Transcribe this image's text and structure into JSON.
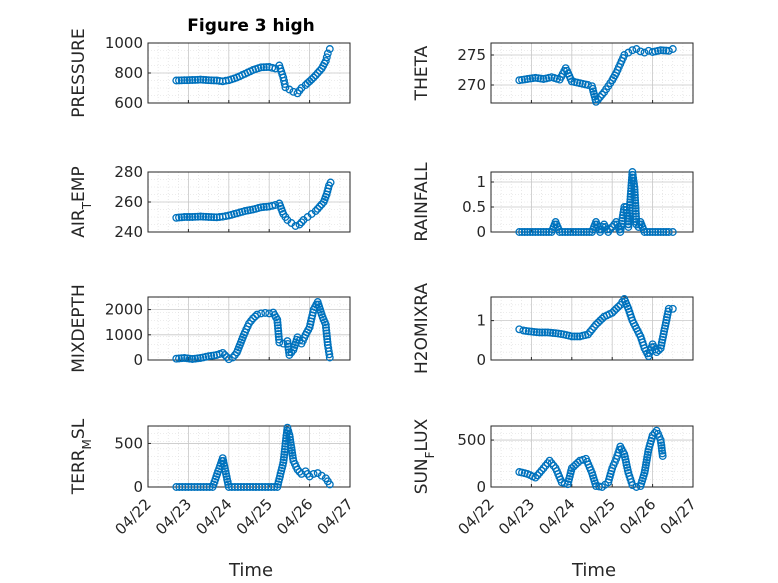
{
  "figure": {
    "title": "Figure 3 high",
    "xlabel": "Time",
    "marker_color": "#0072BD",
    "marker": "open-circle",
    "grid": true,
    "minor_grid": true
  },
  "chart_data": [
    {
      "type": "scatter",
      "ylabel": "PRESSURE",
      "ylim": [
        600,
        1000
      ],
      "yticks": [
        "600",
        "800",
        "1000"
      ],
      "yticks_values": [
        600,
        800,
        1000
      ],
      "xticks": [
        "04/22",
        "04/23",
        "04/24",
        "04/25",
        "04/26",
        "04/27"
      ],
      "xlim": [
        0,
        5
      ],
      "points": [
        [
          0.7,
          750
        ],
        [
          0.9,
          752
        ],
        [
          1.1,
          753
        ],
        [
          1.3,
          756
        ],
        [
          1.5,
          752
        ],
        [
          1.7,
          750
        ],
        [
          1.85,
          745
        ],
        [
          2.0,
          752
        ],
        [
          2.2,
          770
        ],
        [
          2.4,
          795
        ],
        [
          2.6,
          820
        ],
        [
          2.8,
          838
        ],
        [
          3.0,
          840
        ],
        [
          3.15,
          830
        ],
        [
          3.25,
          850
        ],
        [
          3.35,
          770
        ],
        [
          3.4,
          705
        ],
        [
          3.5,
          690
        ],
        [
          3.6,
          675
        ],
        [
          3.7,
          665
        ],
        [
          3.8,
          700
        ],
        [
          3.9,
          720
        ],
        [
          4.0,
          745
        ],
        [
          4.1,
          770
        ],
        [
          4.2,
          800
        ],
        [
          4.3,
          830
        ],
        [
          4.4,
          880
        ],
        [
          4.45,
          930
        ],
        [
          4.5,
          960
        ]
      ]
    },
    {
      "type": "scatter",
      "ylabel": "THETA",
      "ylim": [
        267,
        277
      ],
      "yticks": [
        "270",
        "275"
      ],
      "yticks_values": [
        270,
        275
      ],
      "xticks": [
        "04/22",
        "04/23",
        "04/24",
        "04/25",
        "04/26",
        "04/27"
      ],
      "xlim": [
        0,
        5
      ],
      "points": [
        [
          0.7,
          270.8
        ],
        [
          0.9,
          271.0
        ],
        [
          1.1,
          271.2
        ],
        [
          1.3,
          271.0
        ],
        [
          1.5,
          271.3
        ],
        [
          1.7,
          270.9
        ],
        [
          1.85,
          272.8
        ],
        [
          2.0,
          270.6
        ],
        [
          2.2,
          270.3
        ],
        [
          2.4,
          270.0
        ],
        [
          2.5,
          269.8
        ],
        [
          2.6,
          267.2
        ],
        [
          2.7,
          268.0
        ],
        [
          2.8,
          268.8
        ],
        [
          2.9,
          269.8
        ],
        [
          3.0,
          270.8
        ],
        [
          3.1,
          272.0
        ],
        [
          3.2,
          273.5
        ],
        [
          3.3,
          275.0
        ],
        [
          3.4,
          275.4
        ],
        [
          3.5,
          275.8
        ],
        [
          3.6,
          276.0
        ],
        [
          3.7,
          275.6
        ],
        [
          3.8,
          275.4
        ],
        [
          3.9,
          275.7
        ],
        [
          4.0,
          275.5
        ],
        [
          4.2,
          275.8
        ],
        [
          4.4,
          275.7
        ],
        [
          4.5,
          276.0
        ]
      ]
    },
    {
      "type": "scatter",
      "ylabel": "AIR_TEMP",
      "ylim": [
        240,
        280
      ],
      "yticks": [
        "240",
        "260",
        "280"
      ],
      "yticks_values": [
        240,
        260,
        280
      ],
      "xticks": [
        "04/22",
        "04/23",
        "04/24",
        "04/25",
        "04/26",
        "04/27"
      ],
      "xlim": [
        0,
        5
      ],
      "points": [
        [
          0.7,
          249.5
        ],
        [
          0.9,
          250
        ],
        [
          1.1,
          250
        ],
        [
          1.3,
          250.3
        ],
        [
          1.5,
          250
        ],
        [
          1.7,
          249.8
        ],
        [
          1.85,
          250.2
        ],
        [
          2.0,
          251
        ],
        [
          2.2,
          252.5
        ],
        [
          2.4,
          254
        ],
        [
          2.6,
          255
        ],
        [
          2.8,
          256.5
        ],
        [
          3.0,
          257
        ],
        [
          3.15,
          258
        ],
        [
          3.25,
          259
        ],
        [
          3.35,
          252
        ],
        [
          3.45,
          248
        ],
        [
          3.55,
          246
        ],
        [
          3.65,
          244
        ],
        [
          3.75,
          245
        ],
        [
          3.85,
          248
        ],
        [
          3.95,
          250
        ],
        [
          4.05,
          252
        ],
        [
          4.15,
          254
        ],
        [
          4.25,
          257
        ],
        [
          4.35,
          260
        ],
        [
          4.42,
          265
        ],
        [
          4.48,
          271
        ],
        [
          4.52,
          273
        ]
      ]
    },
    {
      "type": "scatter",
      "ylabel": "RAINFALL",
      "ylim": [
        0,
        1.2
      ],
      "yticks": [
        "0",
        "0.5",
        "1"
      ],
      "yticks_values": [
        0,
        0.5,
        1
      ],
      "xticks": [
        "04/22",
        "04/23",
        "04/24",
        "04/25",
        "04/26",
        "04/27"
      ],
      "xlim": [
        0,
        5
      ],
      "points": [
        [
          0.7,
          0
        ],
        [
          0.9,
          0
        ],
        [
          1.1,
          0
        ],
        [
          1.3,
          0
        ],
        [
          1.5,
          0
        ],
        [
          1.6,
          0.2
        ],
        [
          1.7,
          0
        ],
        [
          1.9,
          0
        ],
        [
          2.1,
          0
        ],
        [
          2.3,
          0
        ],
        [
          2.5,
          0
        ],
        [
          2.6,
          0.2
        ],
        [
          2.7,
          0
        ],
        [
          2.8,
          0.15
        ],
        [
          2.9,
          0
        ],
        [
          3.0,
          0.1
        ],
        [
          3.1,
          0.2
        ],
        [
          3.2,
          0
        ],
        [
          3.3,
          0.5
        ],
        [
          3.35,
          0.5
        ],
        [
          3.4,
          0.1
        ],
        [
          3.45,
          0.65
        ],
        [
          3.5,
          1.2
        ],
        [
          3.55,
          0.9
        ],
        [
          3.6,
          0.15
        ],
        [
          3.65,
          0.1
        ],
        [
          3.7,
          0.2
        ],
        [
          3.8,
          0
        ],
        [
          4.0,
          0
        ],
        [
          4.2,
          0
        ],
        [
          4.4,
          0
        ],
        [
          4.5,
          0
        ]
      ]
    },
    {
      "type": "scatter",
      "ylabel": "MIXDEPTH",
      "ylim": [
        0,
        2500
      ],
      "yticks": [
        "0",
        "1000",
        "2000"
      ],
      "yticks_values": [
        0,
        1000,
        2000
      ],
      "xticks": [
        "04/22",
        "04/23",
        "04/24",
        "04/25",
        "04/26",
        "04/27"
      ],
      "xlim": [
        0,
        5
      ],
      "points": [
        [
          0.7,
          50
        ],
        [
          0.9,
          80
        ],
        [
          1.1,
          40
        ],
        [
          1.3,
          80
        ],
        [
          1.5,
          150
        ],
        [
          1.7,
          200
        ],
        [
          1.85,
          280
        ],
        [
          2.0,
          30
        ],
        [
          2.1,
          100
        ],
        [
          2.2,
          300
        ],
        [
          2.3,
          700
        ],
        [
          2.4,
          1100
        ],
        [
          2.5,
          1450
        ],
        [
          2.6,
          1650
        ],
        [
          2.7,
          1800
        ],
        [
          2.8,
          1850
        ],
        [
          2.9,
          1870
        ],
        [
          3.0,
          1850
        ],
        [
          3.1,
          1880
        ],
        [
          3.2,
          1600
        ],
        [
          3.25,
          700
        ],
        [
          3.35,
          650
        ],
        [
          3.45,
          750
        ],
        [
          3.5,
          200
        ],
        [
          3.6,
          400
        ],
        [
          3.7,
          900
        ],
        [
          3.8,
          650
        ],
        [
          3.9,
          1000
        ],
        [
          4.0,
          1300
        ],
        [
          4.1,
          2000
        ],
        [
          4.2,
          2300
        ],
        [
          4.3,
          1800
        ],
        [
          4.4,
          1400
        ],
        [
          4.45,
          600
        ],
        [
          4.5,
          100
        ]
      ]
    },
    {
      "type": "scatter",
      "ylabel": "H2OMIXRA",
      "ylim": [
        0,
        1.6
      ],
      "yticks": [
        "0",
        "1"
      ],
      "yticks_values": [
        0,
        1
      ],
      "xticks": [
        "04/22",
        "04/23",
        "04/24",
        "04/25",
        "04/26",
        "04/27"
      ],
      "xlim": [
        0,
        5
      ],
      "points": [
        [
          0.7,
          0.78
        ],
        [
          0.8,
          0.75
        ],
        [
          1.0,
          0.72
        ],
        [
          1.2,
          0.7
        ],
        [
          1.4,
          0.7
        ],
        [
          1.6,
          0.68
        ],
        [
          1.8,
          0.65
        ],
        [
          2.0,
          0.6
        ],
        [
          2.2,
          0.6
        ],
        [
          2.4,
          0.65
        ],
        [
          2.6,
          0.9
        ],
        [
          2.8,
          1.1
        ],
        [
          3.0,
          1.2
        ],
        [
          3.2,
          1.4
        ],
        [
          3.3,
          1.55
        ],
        [
          3.4,
          1.3
        ],
        [
          3.5,
          1.0
        ],
        [
          3.6,
          0.8
        ],
        [
          3.7,
          0.6
        ],
        [
          3.8,
          0.3
        ],
        [
          3.9,
          0.1
        ],
        [
          4.0,
          0.4
        ],
        [
          4.1,
          0.2
        ],
        [
          4.2,
          0.3
        ],
        [
          4.3,
          0.8
        ],
        [
          4.4,
          1.3
        ],
        [
          4.5,
          1.3
        ]
      ]
    },
    {
      "type": "scatter",
      "ylabel": "TERR_MSL",
      "ylim": [
        0,
        700
      ],
      "yticks": [
        "0",
        "500"
      ],
      "yticks_values": [
        0,
        500
      ],
      "xticks": [
        "04/22",
        "04/23",
        "04/24",
        "04/25",
        "04/26",
        "04/27"
      ],
      "xlim": [
        0,
        5
      ],
      "points": [
        [
          0.7,
          0
        ],
        [
          1.0,
          0
        ],
        [
          1.3,
          0
        ],
        [
          1.6,
          0
        ],
        [
          1.85,
          330
        ],
        [
          2.0,
          0
        ],
        [
          2.3,
          0
        ],
        [
          2.6,
          0
        ],
        [
          2.9,
          0
        ],
        [
          3.2,
          0
        ],
        [
          3.35,
          280
        ],
        [
          3.45,
          680
        ],
        [
          3.5,
          600
        ],
        [
          3.6,
          300
        ],
        [
          3.7,
          200
        ],
        [
          3.8,
          150
        ],
        [
          3.9,
          180
        ],
        [
          4.0,
          120
        ],
        [
          4.1,
          150
        ],
        [
          4.2,
          160
        ],
        [
          4.3,
          130
        ],
        [
          4.4,
          100
        ],
        [
          4.5,
          30
        ]
      ]
    },
    {
      "type": "scatter",
      "ylabel": "SUN_FLUX",
      "ylim": [
        0,
        650
      ],
      "yticks": [
        "0",
        "500"
      ],
      "yticks_values": [
        0,
        500
      ],
      "xticks": [
        "04/22",
        "04/23",
        "04/24",
        "04/25",
        "04/26",
        "04/27"
      ],
      "xlim": [
        0,
        5
      ],
      "points": [
        [
          0.7,
          160
        ],
        [
          0.9,
          140
        ],
        [
          1.1,
          100
        ],
        [
          1.3,
          200
        ],
        [
          1.45,
          280
        ],
        [
          1.6,
          200
        ],
        [
          1.75,
          50
        ],
        [
          1.9,
          30
        ],
        [
          2.0,
          200
        ],
        [
          2.2,
          280
        ],
        [
          2.35,
          300
        ],
        [
          2.5,
          150
        ],
        [
          2.6,
          10
        ],
        [
          2.75,
          0
        ],
        [
          2.9,
          50
        ],
        [
          3.0,
          200
        ],
        [
          3.1,
          300
        ],
        [
          3.2,
          430
        ],
        [
          3.3,
          350
        ],
        [
          3.4,
          150
        ],
        [
          3.5,
          20
        ],
        [
          3.6,
          0
        ],
        [
          3.7,
          10
        ],
        [
          3.8,
          150
        ],
        [
          3.9,
          400
        ],
        [
          4.0,
          550
        ],
        [
          4.1,
          600
        ],
        [
          4.2,
          500
        ],
        [
          4.25,
          330
        ]
      ]
    }
  ]
}
